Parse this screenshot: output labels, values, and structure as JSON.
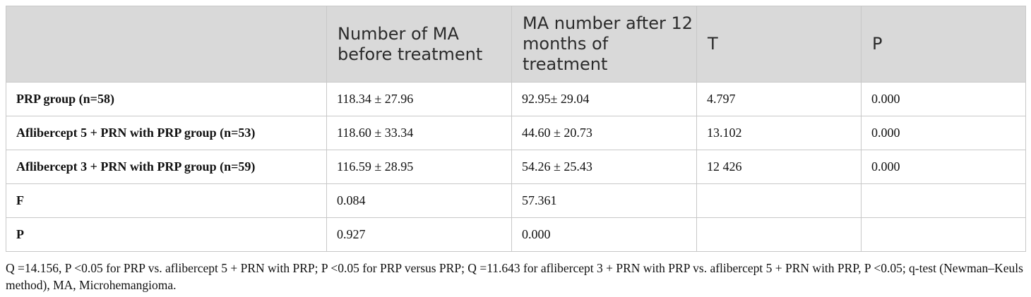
{
  "table": {
    "headers": [
      "",
      "Number of MA before treatment",
      "MA number after 12 months of treatment",
      "T",
      "P"
    ],
    "rows": [
      [
        "PRP group (n=58)",
        "118.34 ± 27.96",
        "92.95± 29.04",
        "4.797",
        "0.000"
      ],
      [
        "Aflibercept 5 + PRN with PRP group (n=53)",
        "118.60 ± 33.34",
        "44.60 ± 20.73",
        "13.102",
        "0.000"
      ],
      [
        "Aflibercept 3 + PRN with PRP group (n=59)",
        "116.59 ± 28.95",
        "54.26 ± 25.43",
        "12 426",
        "0.000"
      ],
      [
        "F",
        "0.084",
        "57.361",
        "",
        ""
      ],
      [
        "P",
        "0.927",
        "0.000",
        "",
        ""
      ]
    ]
  },
  "footnote": "Q =14.156, P <0.05 for PRP vs. aflibercept 5 + PRN with PRP; P <0.05 for PRP versus PRP; Q =11.643 for aflibercept 3 + PRN with PRP vs. aflibercept 5 + PRN with PRP, P <0.05; q-test (Newman–Keuls method), MA, Microhemangioma."
}
